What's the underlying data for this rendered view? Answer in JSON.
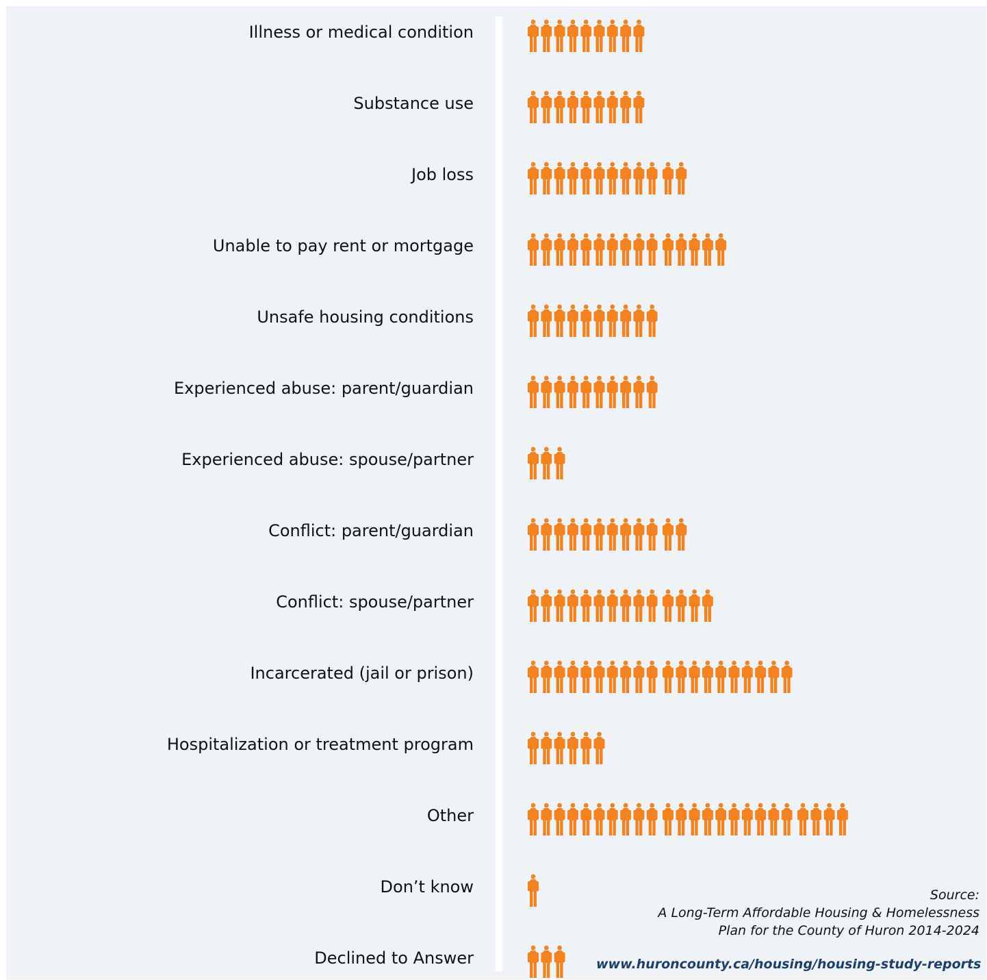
{
  "chart_data": {
    "type": "bar",
    "categories": [
      "Illness or medical condition",
      "Substance use",
      "Job loss",
      "Unable to pay rent or mortgage",
      "Unsafe housing conditions",
      "Experienced abuse: parent/guardian",
      "Experienced abuse: spouse/partner",
      "Conflict: parent/guardian",
      "Conflict: spouse/partner",
      "Incarcerated (jail or prison)",
      "Hospitalization or treatment program",
      "Other",
      "Don’t know",
      "Declined to Answer"
    ],
    "values": [
      9,
      9,
      12,
      15,
      10,
      10,
      3,
      12,
      14,
      20,
      6,
      24,
      1,
      3
    ],
    "icon": "person-icon",
    "icon_color": "#f58220",
    "title": "",
    "xlabel": "",
    "ylabel": "",
    "grid": false
  },
  "source": {
    "heading": "Source:",
    "line1": "A Long-Term Affordable Housing & Homelessness",
    "line2": "Plan for the County of Huron 2014-2024",
    "url": "www.huroncounty.ca/housing/housing-study-reports"
  },
  "colors": {
    "background": "#eff3f7",
    "accent": "#f58220",
    "link": "#1e3e6b"
  }
}
